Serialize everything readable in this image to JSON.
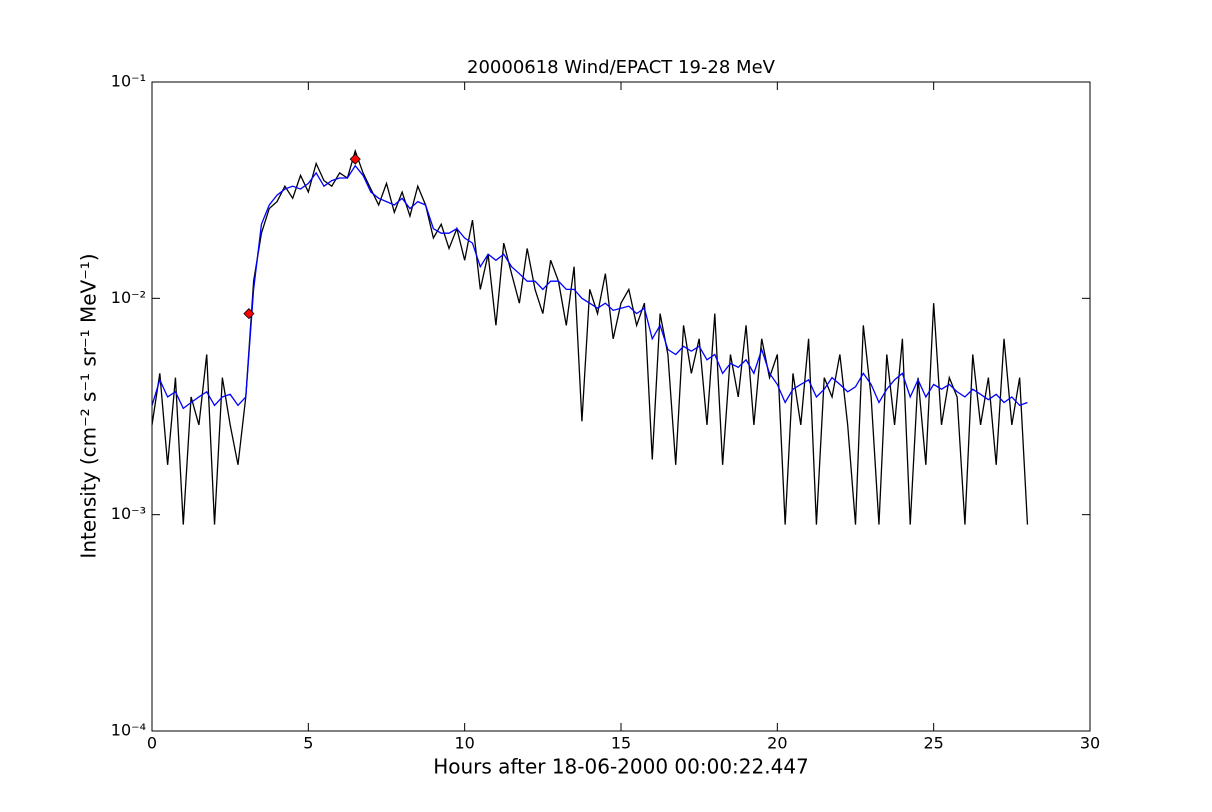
{
  "chart_data": {
    "type": "line",
    "title": "20000618 Wind/EPACT 19-28 MeV",
    "x_label": "Hours after 18-06-2000 00:00:22.447",
    "y_label": "Intensity (cm⁻² s⁻¹ sr⁻¹ MeV⁻¹)",
    "log_y": true,
    "xlim": [
      0,
      30
    ],
    "xticks": [
      0,
      5,
      10,
      15,
      20,
      25,
      30
    ],
    "ylim": [
      0.0001,
      0.1
    ],
    "yticks": [
      {
        "value": 0.0001,
        "label": "10⁻⁴"
      },
      {
        "value": 0.001,
        "label": "10⁻³"
      },
      {
        "value": 0.01,
        "label": "10⁻²"
      },
      {
        "value": 0.1,
        "label": "10⁻¹"
      }
    ],
    "x": [
      0,
      0.25,
      0.5,
      0.75,
      1,
      1.25,
      1.5,
      1.75,
      2,
      2.25,
      2.5,
      2.75,
      3,
      3.25,
      3.5,
      3.75,
      4,
      4.25,
      4.5,
      4.75,
      5,
      5.25,
      5.5,
      5.75,
      6,
      6.25,
      6.5,
      6.75,
      7,
      7.25,
      7.5,
      7.75,
      8,
      8.25,
      8.5,
      8.75,
      9,
      9.25,
      9.5,
      9.75,
      10,
      10.25,
      10.5,
      10.75,
      11,
      11.25,
      11.5,
      11.75,
      12,
      12.25,
      12.5,
      12.75,
      13,
      13.25,
      13.5,
      13.75,
      14,
      14.25,
      14.5,
      14.75,
      15,
      15.25,
      15.5,
      15.75,
      16,
      16.25,
      16.5,
      16.75,
      17,
      17.25,
      17.5,
      17.75,
      18,
      18.25,
      18.5,
      18.75,
      19,
      19.25,
      19.5,
      19.75,
      20,
      20.25,
      20.5,
      20.75,
      21,
      21.25,
      21.5,
      21.75,
      22,
      22.25,
      22.5,
      22.75,
      23,
      23.25,
      23.5,
      23.75,
      24,
      24.25,
      24.5,
      24.75,
      25,
      25.25,
      25.5,
      25.75,
      26,
      26.25,
      26.5,
      26.75,
      27,
      27.25,
      27.5,
      27.75,
      28
    ],
    "series": [
      {
        "color": "#000000",
        "values": [
          0.0026,
          0.0045,
          0.0017,
          0.0043,
          0.0009,
          0.0035,
          0.0026,
          0.0055,
          0.0009,
          0.0043,
          0.0026,
          0.0017,
          0.0035,
          0.012,
          0.02,
          0.026,
          0.028,
          0.033,
          0.029,
          0.037,
          0.031,
          0.042,
          0.035,
          0.033,
          0.038,
          0.036,
          0.048,
          0.038,
          0.032,
          0.027,
          0.034,
          0.025,
          0.031,
          0.024,
          0.033,
          0.027,
          0.019,
          0.022,
          0.017,
          0.021,
          0.015,
          0.023,
          0.011,
          0.016,
          0.0075,
          0.018,
          0.013,
          0.0095,
          0.017,
          0.011,
          0.0085,
          0.015,
          0.012,
          0.0075,
          0.014,
          0.0027,
          0.011,
          0.0085,
          0.013,
          0.0065,
          0.0095,
          0.011,
          0.0075,
          0.0095,
          0.0018,
          0.0085,
          0.0055,
          0.0017,
          0.0075,
          0.0045,
          0.0065,
          0.0026,
          0.0085,
          0.0017,
          0.0055,
          0.0035,
          0.0075,
          0.0026,
          0.0065,
          0.0043,
          0.0055,
          0.0009,
          0.0045,
          0.0026,
          0.0065,
          0.0009,
          0.0043,
          0.0035,
          0.0055,
          0.0026,
          0.0009,
          0.0075,
          0.0035,
          0.0009,
          0.0055,
          0.0026,
          0.0065,
          0.0009,
          0.0043,
          0.0017,
          0.0095,
          0.0026,
          0.0043,
          0.0035,
          0.0009,
          0.0055,
          0.0026,
          0.0043,
          0.0017,
          0.0065,
          0.0026,
          0.0043,
          0.0009
        ]
      },
      {
        "color": "#0000ff",
        "values": [
          0.0032,
          0.0042,
          0.0035,
          0.0037,
          0.0031,
          0.0033,
          0.0035,
          0.0037,
          0.0032,
          0.0035,
          0.0036,
          0.0032,
          0.0035,
          0.011,
          0.022,
          0.027,
          0.03,
          0.032,
          0.033,
          0.032,
          0.034,
          0.038,
          0.033,
          0.035,
          0.036,
          0.036,
          0.041,
          0.037,
          0.031,
          0.029,
          0.028,
          0.027,
          0.029,
          0.026,
          0.028,
          0.027,
          0.021,
          0.02,
          0.02,
          0.021,
          0.019,
          0.018,
          0.014,
          0.016,
          0.015,
          0.016,
          0.014,
          0.013,
          0.012,
          0.012,
          0.011,
          0.012,
          0.012,
          0.011,
          0.011,
          0.01,
          0.0095,
          0.009,
          0.0095,
          0.0088,
          0.009,
          0.0092,
          0.0085,
          0.009,
          0.0065,
          0.0075,
          0.0058,
          0.0055,
          0.006,
          0.0057,
          0.006,
          0.0052,
          0.0055,
          0.0045,
          0.005,
          0.0048,
          0.0052,
          0.0045,
          0.0058,
          0.0045,
          0.004,
          0.0033,
          0.0038,
          0.004,
          0.0042,
          0.0035,
          0.0038,
          0.0043,
          0.004,
          0.0037,
          0.0039,
          0.0045,
          0.004,
          0.0033,
          0.0038,
          0.0042,
          0.0045,
          0.0035,
          0.0042,
          0.0035,
          0.004,
          0.0038,
          0.004,
          0.0037,
          0.0035,
          0.0038,
          0.0036,
          0.0034,
          0.0036,
          0.0033,
          0.0035,
          0.0032,
          0.0033
        ]
      }
    ],
    "markers": {
      "color": "#ff0000",
      "x": [
        3.1,
        6.5
      ],
      "y": [
        0.0085,
        0.044
      ]
    }
  }
}
